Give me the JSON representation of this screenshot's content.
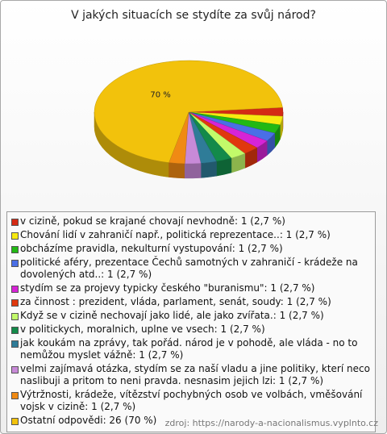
{
  "chart_data": {
    "type": "pie3d",
    "title": "V jakých situacích se stydíte za svůj národ?",
    "categories": [
      "v cizině, pokud se krajané chovají nevhodně: 1 (2,7 %)",
      "Chování lidí v zahraničí např., politická reprezentace..: 1 (2,7 %)",
      "obcházíme pravidla, nekulturní vystupování: 1 (2,7 %)",
      "politické aféry, prezentace Čechů samotných v zahraničí - krádeže na dovolených atd..: 1 (2,7 %)",
      "stydím se za projevy typicky českého \"buranismu\": 1 (2,7 %)",
      "za činnost : prezident, vláda, parlament, senát, soudy: 1 (2,7 %)",
      "Když se v cizině nechovají jako lidé, ale jako zvířata.: 1 (2,7 %)",
      "v politickych, moralnich, uplne ve vsech: 1 (2,7 %)",
      "jak koukám na zprávy, tak pořád. národ je v pohodě, ale vláda - no to nemůžou myslet vážně: 1 (2,7 %)",
      "velmi zajímavá otázka, stydím se za naší vladu a jine politiky, kterí neco naslibuji a pritom to neni pravda. nesnasim jejich lzi: 1 (2,7 %)",
      "Výtržnosti, krádeže, vítězství pochybných osob ve volbách, vměšování vojsk v cizině: 1 (2,7 %)",
      "Ostatní odpovědi: 26 (70 %)"
    ],
    "values": [
      2.7,
      2.7,
      2.7,
      2.7,
      2.7,
      2.7,
      2.7,
      2.7,
      2.7,
      2.7,
      2.7,
      70
    ],
    "value_labels": [
      null,
      null,
      null,
      null,
      null,
      null,
      null,
      null,
      null,
      null,
      null,
      "70 %"
    ],
    "colors": [
      "#d42a14",
      "#f7ea10",
      "#22b814",
      "#4a6fe6",
      "#d624d6",
      "#e0380e",
      "#c2fa6a",
      "#138a4a",
      "#2f7c98",
      "#c88ad8",
      "#f08a14",
      "#f2c20c"
    ],
    "source": "zdroj: https://narody-a-nacionalismus.vyplnto.cz"
  }
}
